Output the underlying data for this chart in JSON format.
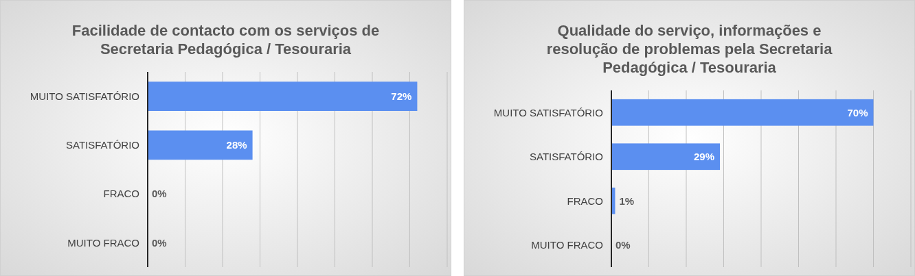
{
  "chart_data": [
    {
      "type": "bar",
      "orientation": "horizontal",
      "title": "Facilidade de contacto com os serviços de Secretaria Pedagógica / Tesouraria",
      "categories": [
        "MUITO SATISFATÓRIO",
        "SATISFATÓRIO",
        "FRACO",
        "MUITO FRACO"
      ],
      "values": [
        72,
        28,
        0,
        0
      ],
      "value_labels": [
        "72%",
        "28%",
        "0%",
        "0%"
      ],
      "color": "#5b8ff0",
      "xlim": [
        0,
        80
      ],
      "xticks": [
        {
          "value": 0,
          "label": null
        },
        {
          "value": 10,
          "label": null
        },
        {
          "value": 20,
          "label": null
        },
        {
          "value": 30,
          "label": null
        },
        {
          "value": 40,
          "label": null
        },
        {
          "value": 50,
          "label": null
        },
        {
          "value": 60,
          "label": null
        },
        {
          "value": 70,
          "label": null
        },
        {
          "value": 80,
          "label": null
        }
      ],
      "grid": "x",
      "tick_labels": "y"
    },
    {
      "type": "bar",
      "orientation": "horizontal",
      "title": "Qualidade do serviço, informações e resolução de problemas pela Secretaria Pedagógica / Tesouraria",
      "categories": [
        "MUITO SATISFATÓRIO",
        "SATISFATÓRIO",
        "FRACO",
        "MUITO FRACO"
      ],
      "values": [
        70,
        29,
        1,
        0
      ],
      "value_labels": [
        "70%",
        "29%",
        "1%",
        "0%"
      ],
      "color": "#5b8ff0",
      "xlim": [
        0,
        80
      ],
      "xticks": [
        {
          "value": 0,
          "label": null
        },
        {
          "value": 10,
          "label": null
        },
        {
          "value": 20,
          "label": null
        },
        {
          "value": 30,
          "label": null
        },
        {
          "value": 40,
          "label": null
        },
        {
          "value": 50,
          "label": null
        },
        {
          "value": 60,
          "label": null
        },
        {
          "value": 70,
          "label": null
        },
        {
          "value": 80,
          "label": null
        }
      ],
      "grid": "x",
      "tick_labels": "y"
    }
  ]
}
